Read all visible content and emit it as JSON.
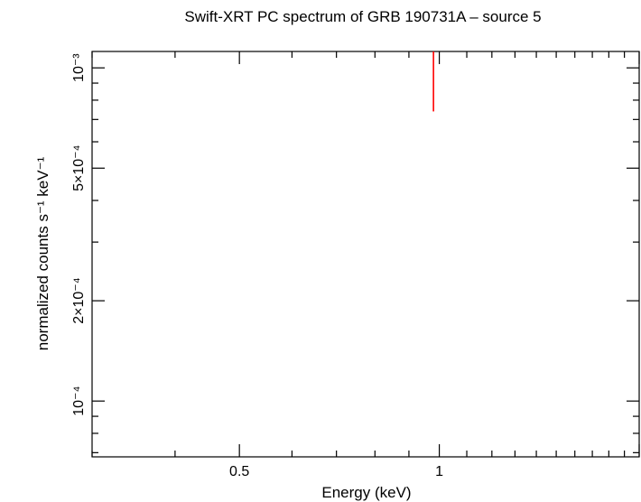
{
  "chart_data": {
    "type": "scatter",
    "title": "Swift-XRT PC spectrum of GRB 190731A – source 5",
    "xlabel": "Energy (keV)",
    "ylabel": "normalized counts s⁻¹ keV⁻¹",
    "xscale": "log",
    "yscale": "log",
    "xlim": [
      0.3,
      2.0
    ],
    "ylim": [
      6.8e-05,
      0.00112
    ],
    "x_tick_labels": [
      {
        "value": 0.5,
        "label": "0.5"
      },
      {
        "value": 1.0,
        "label": "1"
      }
    ],
    "y_tick_labels": [
      {
        "value": 0.001,
        "label": "10⁻³"
      },
      {
        "value": 0.0005,
        "label": "5×10⁻⁴"
      },
      {
        "value": 0.0002,
        "label": "2×10⁻⁴"
      },
      {
        "value": 0.0001,
        "label": "10⁻⁴"
      }
    ],
    "series": [
      {
        "color": "#ff0000",
        "points": [
          {
            "x": 0.98,
            "y_low": 0.00074,
            "y_high": 0.00112
          }
        ]
      }
    ],
    "grid": false,
    "legend": "none"
  }
}
